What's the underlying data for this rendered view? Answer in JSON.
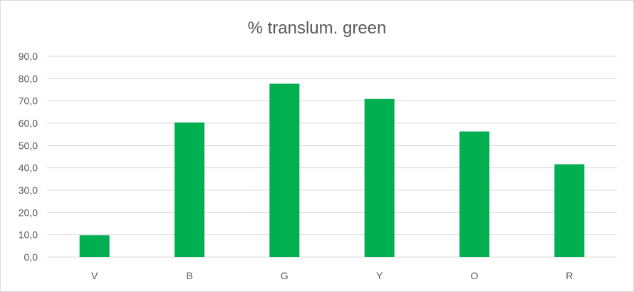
{
  "chart_data": {
    "type": "bar",
    "title": "% translum. green",
    "xlabel": "",
    "ylabel": "",
    "categories": [
      "V",
      "B",
      "G",
      "Y",
      "O",
      "R"
    ],
    "series": [
      {
        "values": [
          9.8,
          60.3,
          77.7,
          70.9,
          56.3,
          41.6
        ]
      }
    ],
    "ylim": [
      0,
      90
    ],
    "yticks": [
      "0,0",
      "10,0",
      "20,0",
      "30,0",
      "40,0",
      "50,0",
      "60,0",
      "70,0",
      "80,0",
      "90,0"
    ],
    "grid": true,
    "legend": "none",
    "bar_color": "#00b050"
  }
}
